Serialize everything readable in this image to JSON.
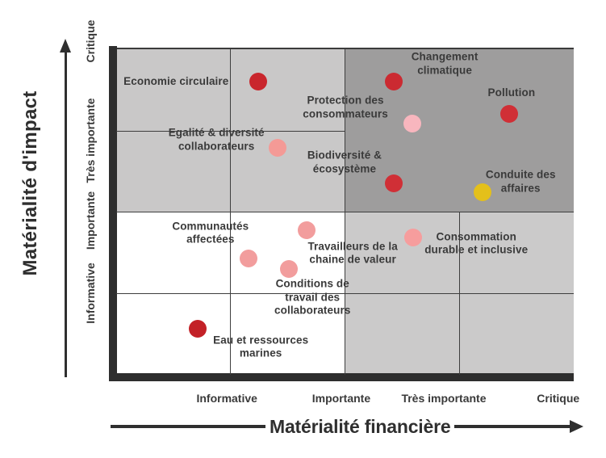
{
  "y_axis_title": "Matérialité d'impact",
  "x_axis_title": "Matérialité financière",
  "chart_data": {
    "type": "scatter",
    "subtype": "double-materiality-matrix",
    "grid": {
      "rows": 4,
      "cols": 4
    },
    "x_axis": {
      "label": "Matérialité financière",
      "categories": [
        "Informative",
        "Importante",
        "Très importante",
        "Critique"
      ],
      "tick_fx": [
        0.242,
        0.492,
        0.716,
        0.966
      ]
    },
    "y_axis": {
      "label": "Matérialité d'impact",
      "categories": [
        "Critique",
        "Très importante",
        "Importante",
        "Informative"
      ],
      "tick_fy": [
        -0.02,
        0.286,
        0.53,
        0.754
      ]
    },
    "quadrant_colors": {
      "top_left": "#c9c8c8",
      "top_right": "#9e9d9d",
      "bottom_left": "#ffffff",
      "bottom_right": "#cbcaca"
    },
    "points": [
      {
        "label": "Economie circulaire",
        "label_lines": [
          "Economie circulaire"
        ],
        "financial": "Importante",
        "impact": "Critique",
        "color": "#c9262d",
        "dot": {
          "fx": 0.31,
          "fy": 0.1
        },
        "label_pos": {
          "fx": 0.131,
          "fy": 0.1
        }
      },
      {
        "label": "Changement climatique",
        "label_lines": [
          "Changement",
          "climatique"
        ],
        "financial": "Très importante",
        "impact": "Critique",
        "color": "#cb2a31",
        "dot": {
          "fx": 0.607,
          "fy": 0.1
        },
        "label_pos": {
          "fx": 0.718,
          "fy": 0.045
        }
      },
      {
        "label": "Protection des consommateurs",
        "label_lines": [
          "Protection des",
          "consommateurs"
        ],
        "financial": "Très importante",
        "impact": "Critique",
        "color": "#f8b6be",
        "dot": {
          "fx": 0.647,
          "fy": 0.229
        },
        "label_pos": {
          "fx": 0.501,
          "fy": 0.179
        }
      },
      {
        "label": "Pollution",
        "label_lines": [
          "Pollution"
        ],
        "financial": "Critique",
        "impact": "Critique",
        "color": "#d02f36",
        "dot": {
          "fx": 0.859,
          "fy": 0.199
        },
        "label_pos": {
          "fx": 0.864,
          "fy": 0.134
        }
      },
      {
        "label": "Egalité & diversité collaborateurs",
        "label_lines": [
          "Egalité & diversité",
          "collaborateurs"
        ],
        "financial": "Importante",
        "impact": "Très importante",
        "color": "#f49a96",
        "dot": {
          "fx": 0.353,
          "fy": 0.303
        },
        "label_pos": {
          "fx": 0.219,
          "fy": 0.279
        }
      },
      {
        "label": "Biodiversité & écosystème",
        "label_lines": [
          "Biodiversité &",
          "écosystème"
        ],
        "financial": "Très importante",
        "impact": "Très importante",
        "color": "#d02f36",
        "dot": {
          "fx": 0.607,
          "fy": 0.413
        },
        "label_pos": {
          "fx": 0.499,
          "fy": 0.348
        }
      },
      {
        "label": "Conduite des affaires",
        "label_lines": [
          "Conduite des",
          "affaires"
        ],
        "financial": "Critique",
        "impact": "Très importante",
        "color": "#e4c01a",
        "dot": {
          "fx": 0.801,
          "fy": 0.44
        },
        "label_pos": {
          "fx": 0.884,
          "fy": 0.408
        }
      },
      {
        "label": "Communautés affectées",
        "label_lines": [
          "Communautés",
          "affectées"
        ],
        "financial": "Importante",
        "impact": "Importante",
        "color": "#f29d9d",
        "dot": {
          "fx": 0.289,
          "fy": 0.642
        },
        "label_pos": {
          "fx": 0.206,
          "fy": 0.565
        }
      },
      {
        "label": "Travailleurs de la chaine de valeur",
        "label_lines": [
          "Travailleurs de la",
          "chaine de valeur"
        ],
        "financial": "Importante",
        "impact": "Importante",
        "color": "#f29d9d",
        "dot": {
          "fx": 0.416,
          "fy": 0.555
        },
        "label_pos": {
          "fx": 0.517,
          "fy": 0.627
        }
      },
      {
        "label": "Conditions de travail des collaborateurs",
        "label_lines": [
          "Conditions de",
          "travail des",
          "collaborateurs"
        ],
        "financial": "Importante",
        "impact": "Importante",
        "color": "#f29d9d",
        "dot": {
          "fx": 0.377,
          "fy": 0.674
        },
        "label_pos": {
          "fx": 0.429,
          "fy": 0.763
        }
      },
      {
        "label": "Consommation durable et inclusive",
        "label_lines": [
          "Consommation",
          "durable et inclusive"
        ],
        "financial": "Très importante",
        "impact": "Importante",
        "color": "#f69d9d",
        "dot": {
          "fx": 0.649,
          "fy": 0.577
        },
        "label_pos": {
          "fx": 0.787,
          "fy": 0.597
        }
      },
      {
        "label": "Eau et ressources marines",
        "label_lines": [
          "Eau et ressources",
          "marines"
        ],
        "financial": "Informative",
        "impact": "Informative",
        "color": "#c32127",
        "dot": {
          "fx": 0.178,
          "fy": 0.858
        },
        "label_pos": {
          "fx": 0.316,
          "fy": 0.915
        }
      }
    ]
  }
}
